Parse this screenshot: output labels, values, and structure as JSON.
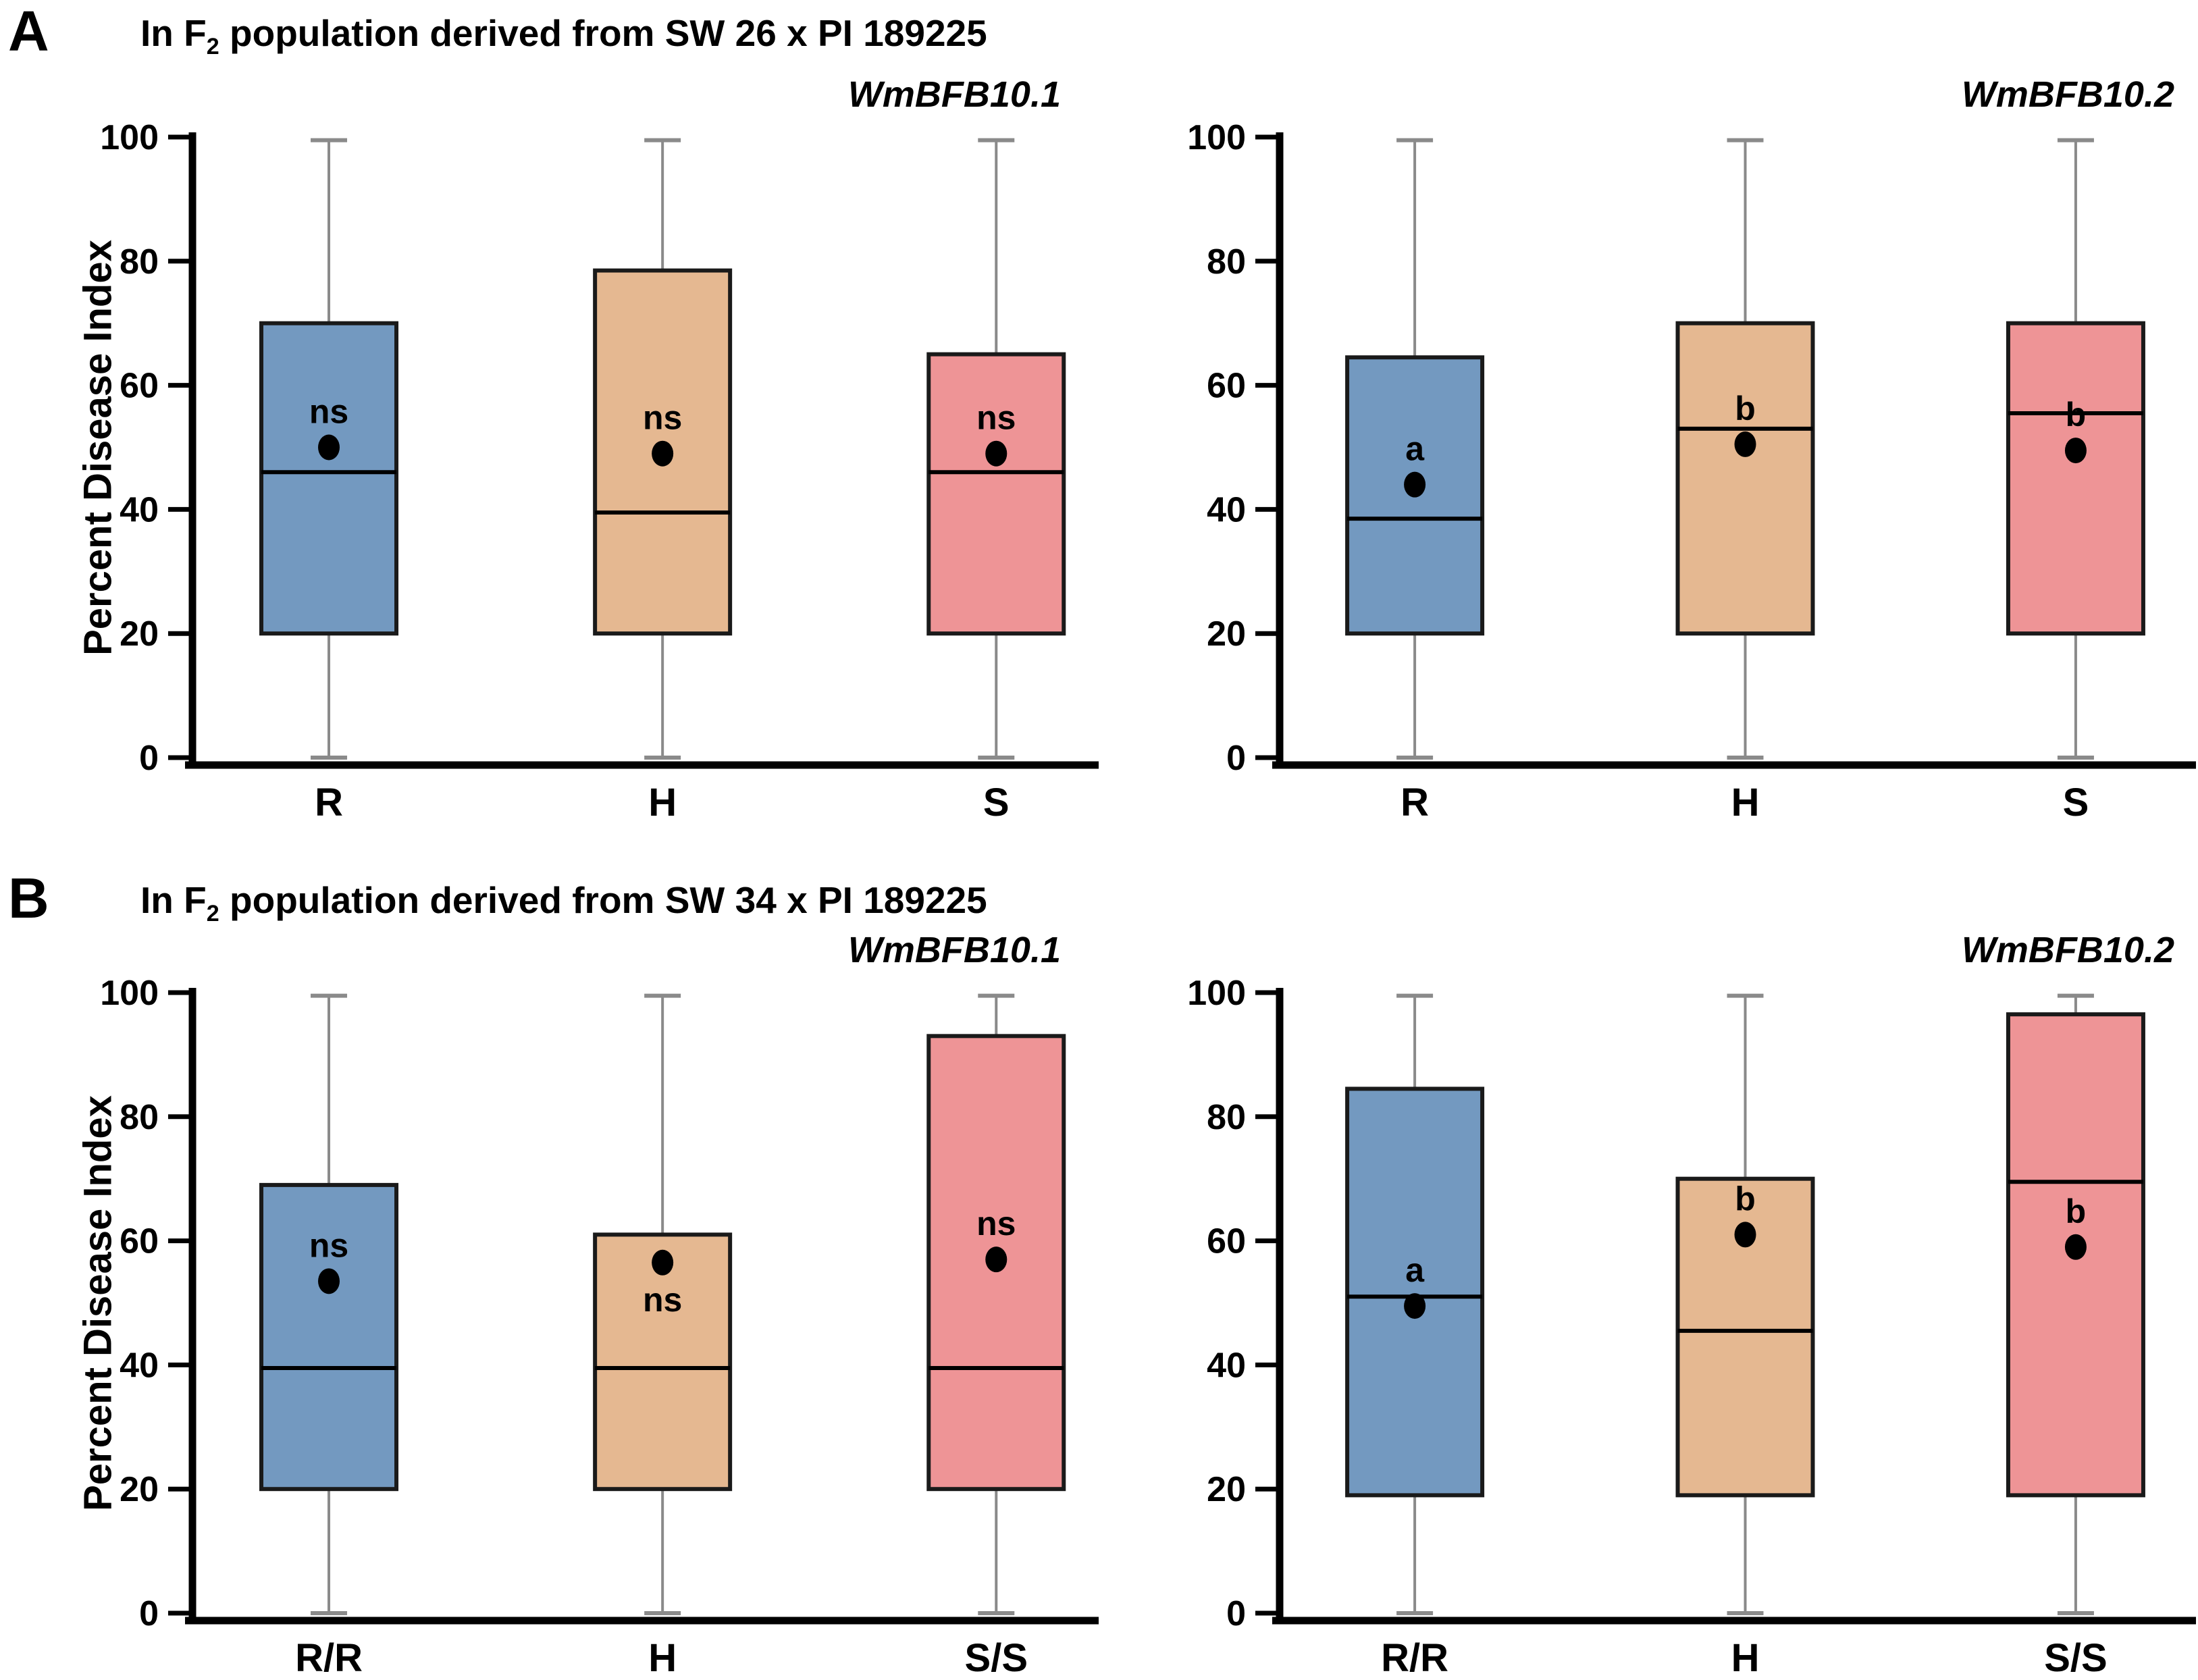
{
  "colors": {
    "r_box": "#7399C0",
    "h_box": "#E5B891",
    "s_box": "#EE9496",
    "box_border": "#1A1A1A",
    "median_line": "#000000",
    "whisker": "#8A8A8A",
    "axis": "#000000",
    "mean_dot": "#000000",
    "text": "#000000",
    "background": "#FFFFFF"
  },
  "panels": [
    {
      "letter": "A",
      "title_pre": "In F",
      "title_sub": "2",
      "title_post": " population derived from SW 26 x PI 189225"
    },
    {
      "letter": "B",
      "title_pre": "In F",
      "title_sub": "2",
      "title_post": " population derived from SW 34 x PI 189225"
    }
  ],
  "chart_data": [
    {
      "type": "boxplot",
      "panel": "A",
      "gene_label": "WmBFB10.1",
      "ylabel": "Percent Disease Index",
      "ylim": [
        0,
        100
      ],
      "yticks": [
        0,
        20,
        40,
        60,
        80,
        100
      ],
      "grid": false,
      "categories": [
        "R",
        "H",
        "S"
      ],
      "series": [
        {
          "category": "R",
          "color": "#7399C0",
          "whisker_low": 0,
          "q1": 20,
          "median": 46,
          "q3": 70,
          "whisker_high": 99.5,
          "mean": 50,
          "sig": "ns",
          "sig_position": "above"
        },
        {
          "category": "H",
          "color": "#E5B891",
          "whisker_low": 0,
          "q1": 20,
          "median": 39.5,
          "q3": 78.5,
          "whisker_high": 99.5,
          "mean": 49,
          "sig": "ns",
          "sig_position": "above"
        },
        {
          "category": "S",
          "color": "#EE9496",
          "whisker_low": 0,
          "q1": 20,
          "median": 46,
          "q3": 65,
          "whisker_high": 99.5,
          "mean": 49,
          "sig": "ns",
          "sig_position": "above"
        }
      ]
    },
    {
      "type": "boxplot",
      "panel": "A",
      "gene_label": "WmBFB10.2",
      "ylabel": "",
      "ylim": [
        0,
        100
      ],
      "yticks": [
        0,
        20,
        40,
        60,
        80,
        100
      ],
      "grid": false,
      "categories": [
        "R",
        "H",
        "S"
      ],
      "series": [
        {
          "category": "R",
          "color": "#7399C0",
          "whisker_low": 0,
          "q1": 20,
          "median": 38.5,
          "q3": 64.5,
          "whisker_high": 99.5,
          "mean": 44,
          "sig": "a",
          "sig_position": "above"
        },
        {
          "category": "H",
          "color": "#E5B891",
          "whisker_low": 0,
          "q1": 20,
          "median": 53,
          "q3": 70,
          "whisker_high": 99.5,
          "mean": 50.5,
          "sig": "b",
          "sig_position": "above"
        },
        {
          "category": "S",
          "color": "#EE9496",
          "whisker_low": 0,
          "q1": 20,
          "median": 55.5,
          "q3": 70,
          "whisker_high": 99.5,
          "mean": 49.5,
          "sig": "b",
          "sig_position": "above"
        }
      ]
    },
    {
      "type": "boxplot",
      "panel": "B",
      "gene_label": "WmBFB10.1",
      "ylabel": "Percent Disease Index",
      "ylim": [
        0,
        100
      ],
      "yticks": [
        0,
        20,
        40,
        60,
        80,
        100
      ],
      "grid": false,
      "categories": [
        "R/R",
        "H",
        "S/S"
      ],
      "series": [
        {
          "category": "R/R",
          "color": "#7399C0",
          "whisker_low": 0,
          "q1": 20,
          "median": 39.5,
          "q3": 69,
          "whisker_high": 99.5,
          "mean": 53.5,
          "sig": "ns",
          "sig_position": "above"
        },
        {
          "category": "H",
          "color": "#E5B891",
          "whisker_low": 0,
          "q1": 20,
          "median": 39.5,
          "q3": 61,
          "whisker_high": 99.5,
          "mean": 56.5,
          "sig": "ns",
          "sig_position": "below"
        },
        {
          "category": "S/S",
          "color": "#EE9496",
          "whisker_low": 0,
          "q1": 20,
          "median": 39.5,
          "q3": 93,
          "whisker_high": 99.5,
          "mean": 57,
          "sig": "ns",
          "sig_position": "above"
        }
      ]
    },
    {
      "type": "boxplot",
      "panel": "B",
      "gene_label": "WmBFB10.2",
      "ylabel": "",
      "ylim": [
        0,
        100
      ],
      "yticks": [
        0,
        20,
        40,
        60,
        80,
        100
      ],
      "grid": false,
      "categories": [
        "R/R",
        "H",
        "S/S"
      ],
      "series": [
        {
          "category": "R/R",
          "color": "#7399C0",
          "whisker_low": 0,
          "q1": 19,
          "median": 51,
          "q3": 84.5,
          "whisker_high": 99.5,
          "mean": 49.5,
          "sig": "a",
          "sig_position": "above"
        },
        {
          "category": "H",
          "color": "#E5B891",
          "whisker_low": 0,
          "q1": 19,
          "median": 45.5,
          "q3": 70,
          "whisker_high": 99.5,
          "mean": 61,
          "sig": "b",
          "sig_position": "above"
        },
        {
          "category": "S/S",
          "color": "#EE9496",
          "whisker_low": 0,
          "q1": 19,
          "median": 69.5,
          "q3": 96.5,
          "whisker_high": 99.5,
          "mean": 59,
          "sig": "b",
          "sig_position": "above"
        }
      ]
    }
  ]
}
